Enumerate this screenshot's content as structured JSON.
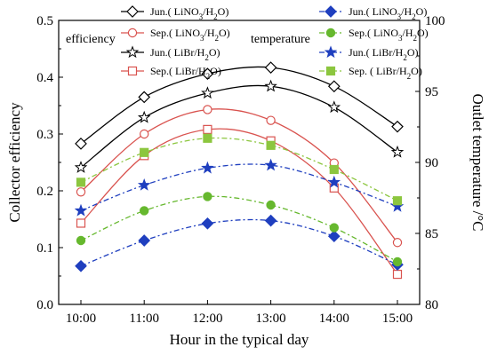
{
  "chart_data": {
    "type": "line",
    "xlabel": "Hour in the typical day",
    "y_left_label": "Collector efficiency",
    "y_right_label": "Outlet temperature /°C",
    "categories": [
      "10:00",
      "11:00",
      "12:00",
      "13:00",
      "14:00",
      "15:00"
    ],
    "y_left_range": [
      0.0,
      0.5
    ],
    "y_left_ticks": [
      "0.0",
      "0.1",
      "0.2",
      "0.3",
      "0.4",
      "0.5"
    ],
    "y_right_range": [
      80,
      100
    ],
    "y_right_ticks": [
      "80",
      "85",
      "90",
      "95",
      "100"
    ],
    "group_labels": {
      "left": "efficiency",
      "right": "temperature"
    },
    "series": [
      {
        "name": "Jun.( LiNO3/H2O)",
        "label_main": "Jun.( LiNO",
        "label_sub1": "3",
        "label_mid": "/H",
        "label_sub2": "2",
        "label_end": "O)",
        "axis": "left",
        "color": "#000000",
        "marker": "diamond-open",
        "dash": "solid",
        "values": [
          0.283,
          0.365,
          0.406,
          0.417,
          0.384,
          0.313
        ]
      },
      {
        "name": "Sep.( LiNO3/H2O)",
        "label_main": "Sep.( LiNO",
        "label_sub1": "3",
        "label_mid": "/H",
        "label_sub2": "2",
        "label_end": "O)",
        "axis": "left",
        "color": "#d9534f",
        "marker": "circle-open",
        "dash": "solid",
        "values": [
          0.198,
          0.3,
          0.343,
          0.324,
          0.249,
          0.109
        ]
      },
      {
        "name": "Jun.( LiBr/H2O)",
        "label_main": "Jun.( LiBr/H",
        "label_sub1": "",
        "label_mid": "",
        "label_sub2": "2",
        "label_end": "O)",
        "axis": "left",
        "color": "#000000",
        "marker": "star-open",
        "dash": "solid",
        "values": [
          0.241,
          0.329,
          0.372,
          0.384,
          0.347,
          0.268
        ]
      },
      {
        "name": "Sep.( LiBr/H2O)",
        "label_main": "Sep.( LiBr/H",
        "label_sub1": "",
        "label_mid": "",
        "label_sub2": "2",
        "label_end": "O)",
        "axis": "left",
        "color": "#d9534f",
        "marker": "square-open",
        "dash": "solid",
        "values": [
          0.143,
          0.262,
          0.308,
          0.288,
          0.205,
          0.053
        ]
      },
      {
        "name": "Jun.( LiNO3/H2O)",
        "label_main": "Jun.( LiNO",
        "label_sub1": "3",
        "label_mid": "/H",
        "label_sub2": "2",
        "label_end": "O)",
        "axis": "right",
        "color": "#1f3fbf",
        "marker": "diamond-filled",
        "dash": "dashdot",
        "values": [
          82.7,
          84.5,
          85.7,
          85.9,
          84.8,
          82.8
        ]
      },
      {
        "name": "Sep.( LiNO3/H2O)",
        "label_main": "Sep.( LiNO",
        "label_sub1": "3",
        "label_mid": "/H",
        "label_sub2": "2",
        "label_end": "O)",
        "axis": "right",
        "color": "#66b82e",
        "marker": "circle-filled",
        "dash": "dashdot",
        "values": [
          84.5,
          86.6,
          87.6,
          87.0,
          85.4,
          83.0
        ]
      },
      {
        "name": "Jun.( LiBr/H2O)",
        "label_main": "Jun.( LiBr/H",
        "label_sub1": "",
        "label_mid": "",
        "label_sub2": "2",
        "label_end": "O)",
        "axis": "right",
        "color": "#1f3fbf",
        "marker": "star-filled",
        "dash": "dashdot",
        "values": [
          86.6,
          88.4,
          89.6,
          89.8,
          88.6,
          86.9
        ]
      },
      {
        "name": "Sep. ( LiBr/H2O)",
        "label_main": "Sep. ( LiBr/H",
        "label_sub1": "",
        "label_mid": "",
        "label_sub2": "2",
        "label_end": "O)",
        "axis": "right",
        "color": "#8cc63f",
        "marker": "square-filled",
        "dash": "dashdot",
        "values": [
          88.6,
          90.7,
          91.7,
          91.2,
          89.5,
          87.3
        ]
      }
    ]
  }
}
